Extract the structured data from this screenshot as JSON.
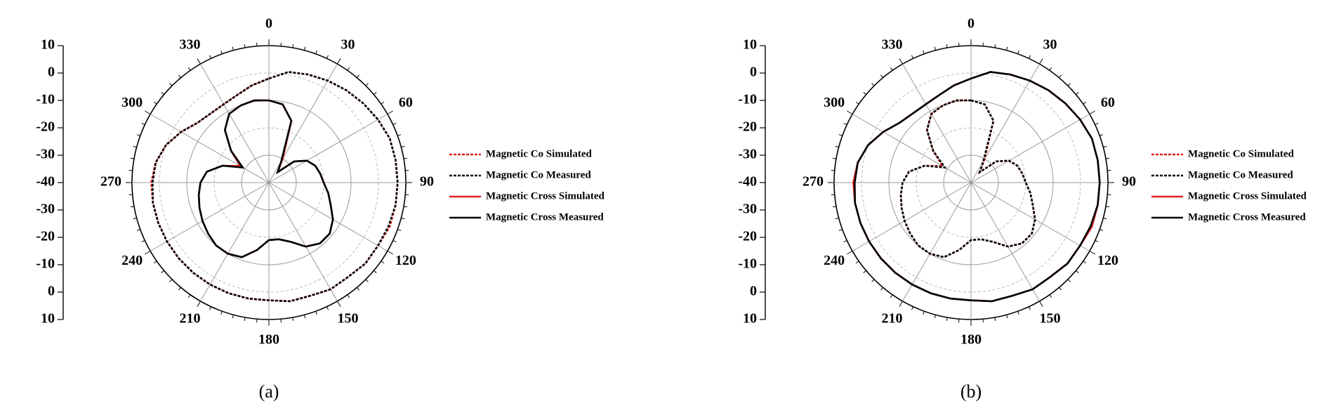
{
  "chart_data": [
    {
      "type": "polar",
      "caption": "(a)",
      "theta": [
        0,
        10,
        20,
        30,
        40,
        50,
        60,
        70,
        80,
        90,
        100,
        110,
        120,
        130,
        140,
        150,
        160,
        170,
        180,
        190,
        200,
        210,
        220,
        230,
        240,
        250,
        260,
        270,
        280,
        290,
        300,
        310,
        320,
        330,
        340,
        350
      ],
      "angle_ticks": [
        0,
        30,
        60,
        90,
        120,
        150,
        180,
        210,
        240,
        270,
        300,
        330
      ],
      "rlim": [
        -40,
        10
      ],
      "rticks": [
        -40,
        -30,
        -20,
        -10,
        0,
        10
      ],
      "series": [
        {
          "name": "Magnetic Co Simulated",
          "color": "#e02020",
          "style": "dashed",
          "values": [
            -2,
            1,
            2,
            3,
            4,
            5,
            6,
            7,
            7,
            7,
            7,
            7,
            6,
            6,
            5,
            5,
            4,
            4,
            3,
            3,
            3,
            3,
            3,
            3,
            3,
            3,
            3,
            3,
            2,
            0,
            -3,
            -6,
            -7,
            -7,
            -6,
            -4
          ]
        },
        {
          "name": "Magnetic Co Measured",
          "color": "#000000",
          "style": "dashed",
          "values": [
            -2,
            1,
            2,
            3,
            4,
            5,
            6,
            7,
            7,
            7,
            7,
            6.5,
            6,
            6,
            5,
            5,
            4,
            4,
            3,
            3,
            3,
            3,
            3,
            3,
            3,
            3,
            3,
            2.5,
            2,
            0,
            -3,
            -6,
            -7,
            -7,
            -6,
            -4
          ]
        },
        {
          "name": "Magnetic Cross Simulated",
          "color": "#e02020",
          "style": "solid",
          "values": [
            -10,
            -11,
            -16,
            -30,
            -35,
            -28,
            -24,
            -22,
            -21,
            -20,
            -18,
            -16,
            -13,
            -11,
            -11,
            -13,
            -17,
            -19,
            -19,
            -15,
            -11,
            -10,
            -10,
            -11,
            -12,
            -13,
            -14,
            -15,
            -17,
            -22,
            -28,
            -22,
            -15,
            -11,
            -10,
            -9.5
          ]
        },
        {
          "name": "Magnetic Cross Measured",
          "color": "#000000",
          "style": "solid",
          "values": [
            -10,
            -11,
            -16,
            -31,
            -35,
            -28,
            -24,
            -22,
            -21,
            -20,
            -18,
            -16,
            -13,
            -11,
            -11,
            -13,
            -17,
            -19,
            -19,
            -15,
            -11,
            -10,
            -10,
            -11,
            -12,
            -13,
            -14,
            -15,
            -17,
            -22,
            -29,
            -22,
            -15,
            -11,
            -10,
            -9.5
          ]
        }
      ]
    },
    {
      "type": "polar",
      "caption": "(b)",
      "theta": [
        0,
        10,
        20,
        30,
        40,
        50,
        60,
        70,
        80,
        90,
        100,
        110,
        120,
        130,
        140,
        150,
        160,
        170,
        180,
        190,
        200,
        210,
        220,
        230,
        240,
        250,
        260,
        270,
        280,
        290,
        300,
        310,
        320,
        330,
        340,
        350
      ],
      "angle_ticks": [
        0,
        30,
        60,
        90,
        120,
        150,
        180,
        210,
        240,
        270,
        300,
        330
      ],
      "rlim": [
        -40,
        10
      ],
      "rticks": [
        -40,
        -30,
        -20,
        -10,
        0,
        10
      ],
      "series": [
        {
          "name": "Magnetic Co Simulated",
          "color": "#e02020",
          "style": "dashed",
          "values": [
            -10,
            -11,
            -16,
            -30,
            -35,
            -28,
            -24,
            -22,
            -21,
            -20,
            -18,
            -16,
            -13,
            -11,
            -11,
            -13,
            -17,
            -19,
            -19,
            -15,
            -11,
            -10,
            -10,
            -11,
            -12,
            -13,
            -14,
            -15,
            -17,
            -22,
            -28,
            -22,
            -15,
            -11,
            -10,
            -9.5
          ]
        },
        {
          "name": "Magnetic Co Measured",
          "color": "#000000",
          "style": "dashed",
          "values": [
            -10,
            -11,
            -16,
            -31,
            -35,
            -28,
            -24,
            -22,
            -21,
            -20,
            -18,
            -16,
            -13,
            -11,
            -11,
            -13,
            -17,
            -19,
            -19,
            -15,
            -11,
            -10,
            -10,
            -11,
            -12,
            -13,
            -14,
            -15,
            -17,
            -22,
            -29,
            -22,
            -15,
            -11,
            -10,
            -9.5
          ]
        },
        {
          "name": "Magnetic Cross Simulated",
          "color": "#e02020",
          "style": "solid",
          "values": [
            -2,
            1,
            2,
            3,
            4,
            5,
            6,
            7,
            7,
            7,
            7,
            7,
            6,
            6,
            5,
            5,
            4,
            4,
            3,
            3,
            3,
            3,
            3,
            3,
            3,
            3,
            3,
            3,
            2,
            0,
            -3,
            -6,
            -7,
            -7,
            -6,
            -4
          ]
        },
        {
          "name": "Magnetic Cross Measured",
          "color": "#000000",
          "style": "solid",
          "values": [
            -2,
            1,
            2,
            3,
            4,
            5,
            6,
            7,
            7,
            7,
            7,
            6.5,
            6,
            6,
            5,
            5,
            4,
            4,
            3,
            3,
            3,
            3,
            3,
            3,
            3,
            3,
            3,
            2.5,
            2,
            0,
            -3,
            -6,
            -7,
            -7,
            -6,
            -4
          ]
        }
      ]
    }
  ]
}
